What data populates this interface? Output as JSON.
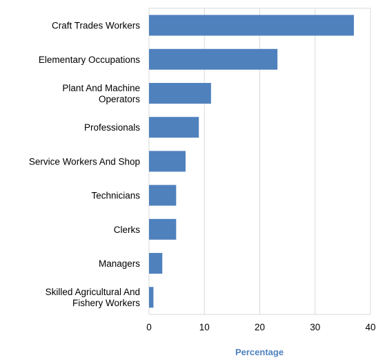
{
  "chart_data": {
    "type": "bar",
    "orientation": "horizontal",
    "categories": [
      "Craft Trades Workers",
      "Elementary Occupations",
      "Plant And Machine\nOperators",
      "Professionals",
      "Service Workers And Shop",
      "Technicians",
      "Clerks",
      "Managers",
      "Skilled Agricultural And\nFishery Workers"
    ],
    "values": [
      37,
      23.2,
      11.2,
      9,
      6.6,
      4.9,
      4.9,
      2.4,
      0.8
    ],
    "xlabel": "Percentage",
    "ylabel": "",
    "xlim": [
      0,
      40
    ],
    "xticks": [
      0,
      10,
      20,
      30,
      40
    ],
    "grid": true,
    "colors": {
      "bar": "#4f81bd",
      "grid": "#d9d9d9",
      "axis_title": "#4f81bd"
    }
  }
}
